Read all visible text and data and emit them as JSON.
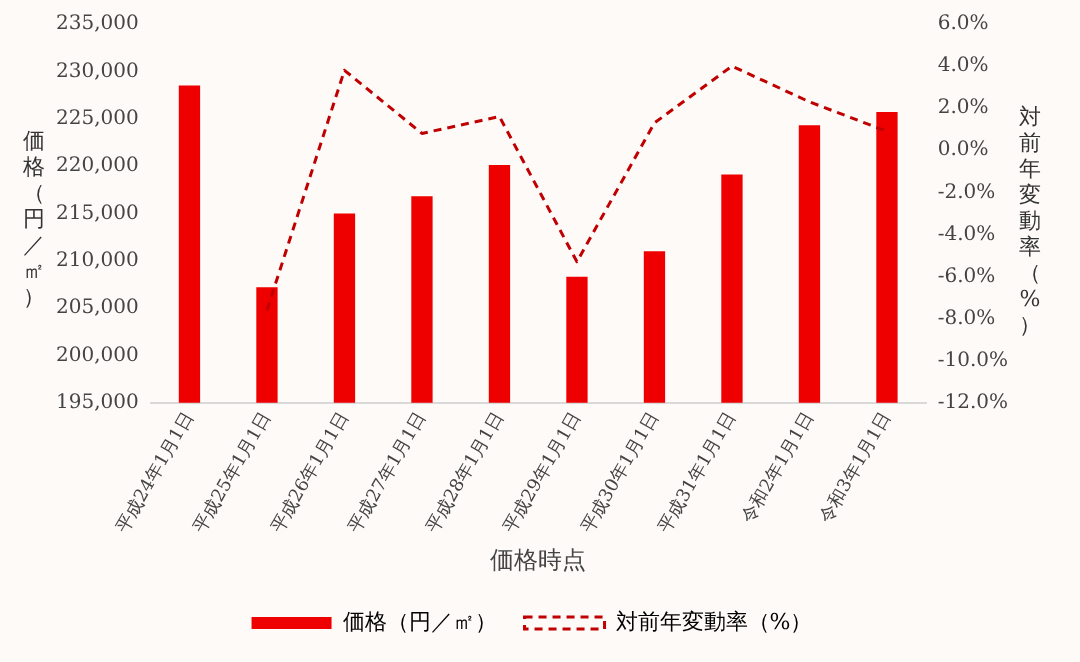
{
  "chart_data": {
    "type": "bar",
    "xlabel": "価格時点",
    "ylabel": "価格（円／㎡）",
    "y2label": "対前年変動率（%）",
    "categories": [
      "平成24年1月1日",
      "平成25年1月1日",
      "平成26年1月1日",
      "平成27年1月1日",
      "平成28年1月1日",
      "平成29年1月1日",
      "平成30年1月1日",
      "平成31年1月1日",
      "令和2年1月1日",
      "令和3年1月1日"
    ],
    "series": [
      {
        "name": "価格（円／㎡）",
        "color": "#ee0000",
        "values": [
          228500,
          207200,
          215000,
          216800,
          220100,
          208300,
          211000,
          219100,
          224300,
          225700
        ]
      },
      {
        "name": "対前年変動率（%）",
        "type": "line",
        "axis": "y2",
        "color": "#c00000",
        "line_style": "dashed",
        "marker": "none",
        "values": [
          null,
          -7.6,
          3.8,
          0.8,
          1.6,
          -5.3,
          1.3,
          4.0,
          2.3,
          0.9
        ]
      }
    ],
    "ylim": [
      195000,
      235000
    ],
    "yticks": [
      {
        "value": 195000,
        "label": "195,000"
      },
      {
        "value": 200000,
        "label": "200,000"
      },
      {
        "value": 205000,
        "label": "205,000"
      },
      {
        "value": 210000,
        "label": "210,000"
      },
      {
        "value": 215000,
        "label": "215,000"
      },
      {
        "value": 220000,
        "label": "220,000"
      },
      {
        "value": 225000,
        "label": "225,000"
      },
      {
        "value": 230000,
        "label": "230,000"
      },
      {
        "value": 235000,
        "label": "235,000"
      }
    ],
    "y2lim": [
      -12,
      6
    ],
    "y2ticks": [
      {
        "value": -12,
        "label": "-12.0%"
      },
      {
        "value": -10,
        "label": "-10.0%"
      },
      {
        "value": -8,
        "label": "-8.0%"
      },
      {
        "value": -6,
        "label": "-6.0%"
      },
      {
        "value": -4,
        "label": "-4.0%"
      },
      {
        "value": -2,
        "label": "-2.0%"
      },
      {
        "value": 0,
        "label": "0.0%"
      },
      {
        "value": 2,
        "label": "2.0%"
      },
      {
        "value": 4,
        "label": "4.0%"
      },
      {
        "value": 6,
        "label": "6.0%"
      }
    ],
    "grid": false,
    "legend": "bottom"
  }
}
